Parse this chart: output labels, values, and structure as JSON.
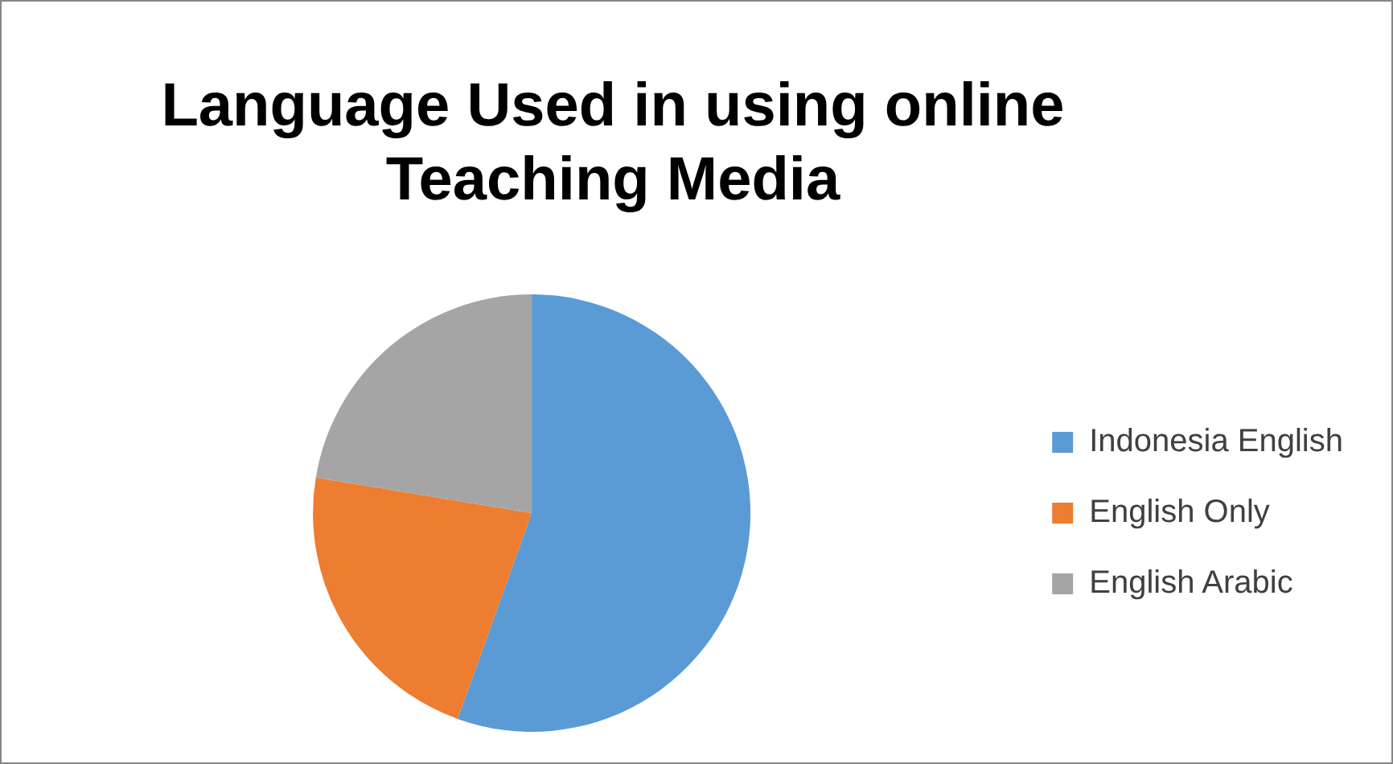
{
  "chart_data": {
    "type": "pie",
    "title": "Language Used in using online Teaching Media",
    "categories": [
      "Indonesia English",
      "English Only",
      "English Arabic"
    ],
    "values": [
      55.5,
      22.1,
      22.4
    ],
    "colors": [
      "#5b9bd5",
      "#ed7d31",
      "#a5a5a5"
    ],
    "legend": "right"
  }
}
